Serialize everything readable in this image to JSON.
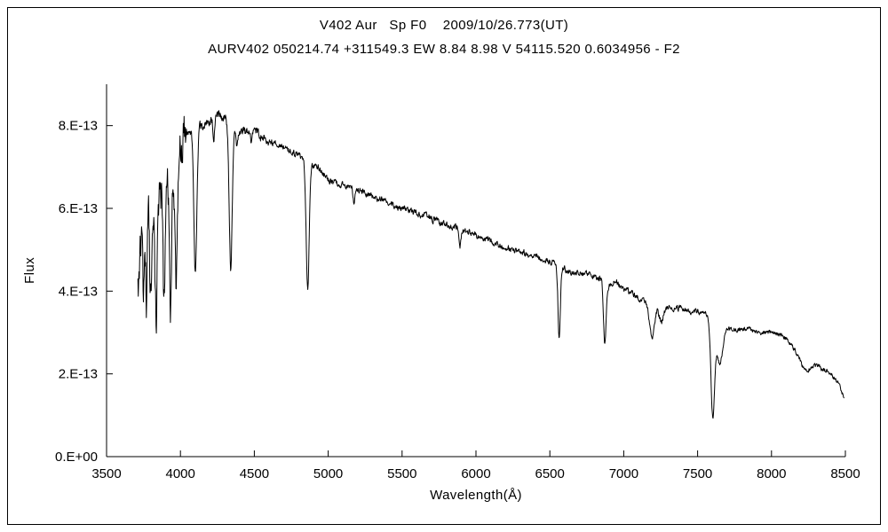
{
  "page": {
    "background": "#ffffff",
    "border_color": "#000000"
  },
  "titles": {
    "line1": "V402 Aur   Sp F0    2009/10/26.773(UT)",
    "line2": "AURV402 050214.74 +311549.3 EW 8.84 8.98 V 54115.520 0.6034956 - F2"
  },
  "chart_data": {
    "type": "line",
    "title": "V402 Aur  Sp F0  2009/10/26.773(UT)",
    "subtitle": "AURV402 050214.74 +311549.3 EW 8.84 8.98 V 54115.520 0.6034956 - F2",
    "xlabel": "Wavelength(Å)",
    "ylabel": "Flux",
    "y_value_units": "1e-13 (as labeled on axis ticks)",
    "xlim": [
      3500,
      8500
    ],
    "ylim": [
      0,
      9
    ],
    "grid": false,
    "legend": "none",
    "x_ticks": [
      3500,
      4000,
      4500,
      5000,
      5500,
      6000,
      6500,
      7000,
      7500,
      8000,
      8500
    ],
    "y_ticks": [
      {
        "value": 0,
        "label": "0.E+00"
      },
      {
        "value": 2,
        "label": "2.E-13"
      },
      {
        "value": 4,
        "label": "4.E-13"
      },
      {
        "value": 6,
        "label": "6.E-13"
      },
      {
        "value": 8,
        "label": "8.E-13"
      }
    ],
    "line_color": "#000000",
    "axis_color": "#000000",
    "series_name": "V402 Aur spectrum",
    "spectrum_model": {
      "wavelength_range": [
        3712,
        8492
      ],
      "step": 2.5,
      "seed": 20091026,
      "continuum": [
        [
          3712,
          4.0
        ],
        [
          3730,
          5.2
        ],
        [
          3760,
          5.8
        ],
        [
          3800,
          6.0
        ],
        [
          3840,
          6.1
        ],
        [
          3880,
          6.3
        ],
        [
          3920,
          6.5
        ],
        [
          3960,
          6.9
        ],
        [
          4000,
          7.5
        ],
        [
          4040,
          7.8
        ],
        [
          4080,
          7.9
        ],
        [
          4140,
          8.0
        ],
        [
          4200,
          8.1
        ],
        [
          4260,
          8.25
        ],
        [
          4320,
          8.1
        ],
        [
          4380,
          7.9
        ],
        [
          4440,
          7.85
        ],
        [
          4500,
          7.9
        ],
        [
          4560,
          7.7
        ],
        [
          4620,
          7.6
        ],
        [
          4700,
          7.5
        ],
        [
          4780,
          7.3
        ],
        [
          4860,
          7.15
        ],
        [
          4940,
          6.95
        ],
        [
          5000,
          6.7
        ],
        [
          5100,
          6.55
        ],
        [
          5200,
          6.45
        ],
        [
          5300,
          6.3
        ],
        [
          5400,
          6.15
        ],
        [
          5500,
          6.0
        ],
        [
          5600,
          5.9
        ],
        [
          5700,
          5.75
        ],
        [
          5800,
          5.6
        ],
        [
          5900,
          5.5
        ],
        [
          6000,
          5.35
        ],
        [
          6100,
          5.2
        ],
        [
          6200,
          5.05
        ],
        [
          6300,
          4.95
        ],
        [
          6400,
          4.85
        ],
        [
          6500,
          4.72
        ],
        [
          6560,
          4.6
        ],
        [
          6620,
          4.5
        ],
        [
          6700,
          4.42
        ],
        [
          6800,
          4.38
        ],
        [
          6850,
          4.3
        ],
        [
          6900,
          4.15
        ],
        [
          6950,
          4.25
        ],
        [
          7000,
          4.05
        ],
        [
          7060,
          3.95
        ],
        [
          7120,
          3.8
        ],
        [
          7180,
          3.7
        ],
        [
          7240,
          3.6
        ],
        [
          7300,
          3.62
        ],
        [
          7360,
          3.6
        ],
        [
          7420,
          3.55
        ],
        [
          7480,
          3.5
        ],
        [
          7540,
          3.52
        ],
        [
          7580,
          3.4
        ],
        [
          7620,
          3.2
        ],
        [
          7660,
          3.1
        ],
        [
          7700,
          3.1
        ],
        [
          7760,
          3.05
        ],
        [
          7820,
          3.1
        ],
        [
          7880,
          3.05
        ],
        [
          7940,
          3.0
        ],
        [
          8000,
          3.0
        ],
        [
          8060,
          2.95
        ],
        [
          8100,
          2.85
        ],
        [
          8140,
          2.65
        ],
        [
          8180,
          2.5
        ],
        [
          8220,
          2.35
        ],
        [
          8260,
          2.25
        ],
        [
          8300,
          2.2
        ],
        [
          8360,
          2.1
        ],
        [
          8420,
          1.95
        ],
        [
          8460,
          1.75
        ],
        [
          8492,
          1.4
        ]
      ],
      "absorption_lines": [
        {
          "name": "balmer-3750",
          "center": 3750,
          "depth": 2.2,
          "sigma": 5
        },
        {
          "name": "balmer-3771",
          "center": 3771,
          "depth": 2.3,
          "sigma": 5
        },
        {
          "name": "balmer-3798",
          "center": 3798,
          "depth": 2.5,
          "sigma": 6
        },
        {
          "name": "balmer-3835",
          "center": 3835,
          "depth": 2.7,
          "sigma": 7
        },
        {
          "name": "balmer-3889",
          "center": 3889,
          "depth": 2.8,
          "sigma": 7
        },
        {
          "name": "ca-k-3933",
          "center": 3933,
          "depth": 2.9,
          "sigma": 7
        },
        {
          "name": "h-epsilon-3970",
          "center": 3970,
          "depth": 2.9,
          "sigma": 8
        },
        {
          "name": "h-delta-4101",
          "center": 4101,
          "depth": 3.5,
          "sigma": 10
        },
        {
          "name": "ca-4226",
          "center": 4226,
          "depth": 0.5,
          "sigma": 5
        },
        {
          "name": "h-gamma-4340",
          "center": 4340,
          "depth": 3.5,
          "sigma": 10
        },
        {
          "name": "fe-4383",
          "center": 4383,
          "depth": 0.45,
          "sigma": 5
        },
        {
          "name": "mg-4481",
          "center": 4481,
          "depth": 0.3,
          "sigma": 5
        },
        {
          "name": "h-beta-4861",
          "center": 4861,
          "depth": 3.1,
          "sigma": 10
        },
        {
          "name": "mg-5175",
          "center": 5175,
          "depth": 0.3,
          "sigma": 7
        },
        {
          "name": "na-d-5893",
          "center": 5893,
          "depth": 0.4,
          "sigma": 6
        },
        {
          "name": "h-alpha-6563",
          "center": 6563,
          "depth": 1.7,
          "sigma": 8
        },
        {
          "name": "telluric-b-6870",
          "center": 6872,
          "depth": 1.5,
          "sigma": 9
        },
        {
          "name": "telluric-h2o-7190",
          "center": 7190,
          "depth": 0.8,
          "sigma": 16
        },
        {
          "name": "telluric-h2o-7255",
          "center": 7255,
          "depth": 0.35,
          "sigma": 14
        },
        {
          "name": "telluric-a-7600",
          "center": 7602,
          "depth": 2.3,
          "sigma": 12
        },
        {
          "name": "telluric-a-wing-7648",
          "center": 7648,
          "depth": 0.9,
          "sigma": 20
        },
        {
          "name": "telluric-h2o-8230",
          "center": 8230,
          "depth": 0.25,
          "sigma": 28
        }
      ],
      "noise_regions": [
        {
          "up_to": 4040,
          "amp": 0.7
        },
        {
          "up_to": 4600,
          "amp": 0.14
        },
        {
          "up_to": 6000,
          "amp": 0.1
        },
        {
          "up_to": 7500,
          "amp": 0.09
        },
        {
          "up_to": 9000,
          "amp": 0.07
        }
      ]
    }
  }
}
